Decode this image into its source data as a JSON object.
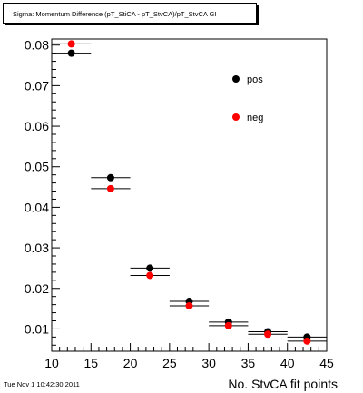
{
  "title": "Sigma: Momentum Difference (pT_StiCA - pT_StvCA)/pT_StvCA GI",
  "timestamp": "Tue Nov  1 10:42:30 2011",
  "colors": {
    "pos": "#000000",
    "neg": "#ff0000",
    "axis": "#000000"
  },
  "chart_data": {
    "type": "scatter",
    "title": "Sigma: Momentum Difference (pT_StiCA - pT_StvCA)/pT_StvCA GI",
    "xlabel": "No. StvCA fit points",
    "ylabel": "",
    "xlim": [
      10,
      45
    ],
    "ylim": [
      0.0045,
      0.0815
    ],
    "x_ticks": [
      "10",
      "15",
      "20",
      "25",
      "30",
      "35",
      "40",
      "45"
    ],
    "y_ticks": [
      "0.01",
      "0.02",
      "0.03",
      "0.04",
      "0.05",
      "0.06",
      "0.07",
      "0.08"
    ],
    "grid": false,
    "legend": "top-right",
    "x_bins": [
      [
        10,
        15
      ],
      [
        15,
        20
      ],
      [
        20,
        25
      ],
      [
        25,
        30
      ],
      [
        30,
        35
      ],
      [
        35,
        40
      ],
      [
        40,
        45
      ]
    ],
    "series": [
      {
        "name": "pos",
        "color": "#000000",
        "x": [
          12.5,
          17.5,
          22.5,
          27.5,
          32.5,
          37.5,
          42.5
        ],
        "values": [
          0.078,
          0.0473,
          0.025,
          0.0168,
          0.0117,
          0.0093,
          0.008
        ]
      },
      {
        "name": "neg",
        "color": "#ff0000",
        "x": [
          12.5,
          17.5,
          22.5,
          27.5,
          32.5,
          37.5,
          42.5
        ],
        "values": [
          0.0803,
          0.0446,
          0.0232,
          0.0157,
          0.0108,
          0.0087,
          0.007
        ]
      }
    ]
  }
}
